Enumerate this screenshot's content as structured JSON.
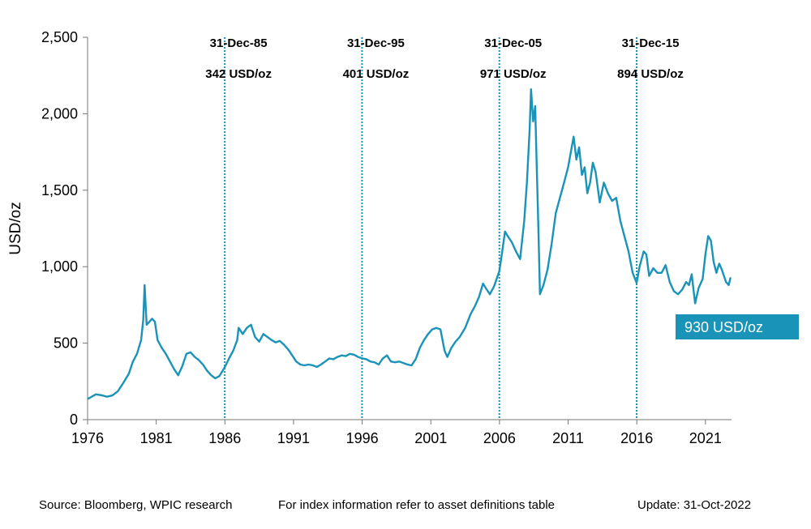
{
  "chart_data": {
    "type": "line",
    "title": "",
    "xlabel": "",
    "ylabel": "USD/oz",
    "xlim": [
      1976,
      2022.9
    ],
    "ylim": [
      0,
      2500
    ],
    "x_ticks": [
      "1976",
      "1981",
      "1986",
      "1991",
      "1996",
      "2001",
      "2006",
      "2011",
      "2016",
      "2021"
    ],
    "y_ticks": [
      "0",
      "500",
      "1,000",
      "1,500",
      "2,000",
      "2,500"
    ],
    "grid": false,
    "line_color": "#1a93b8",
    "series": [
      {
        "name": "",
        "points": [
          [
            1976.0,
            135
          ],
          [
            1976.3,
            150
          ],
          [
            1976.6,
            165
          ],
          [
            1977.0,
            160
          ],
          [
            1977.4,
            150
          ],
          [
            1977.8,
            158
          ],
          [
            1978.2,
            185
          ],
          [
            1978.6,
            240
          ],
          [
            1979.0,
            300
          ],
          [
            1979.3,
            380
          ],
          [
            1979.6,
            430
          ],
          [
            1979.9,
            520
          ],
          [
            1980.05,
            650
          ],
          [
            1980.15,
            880
          ],
          [
            1980.3,
            620
          ],
          [
            1980.5,
            640
          ],
          [
            1980.7,
            660
          ],
          [
            1980.9,
            640
          ],
          [
            1981.1,
            520
          ],
          [
            1981.4,
            470
          ],
          [
            1981.7,
            430
          ],
          [
            1982.0,
            380
          ],
          [
            1982.3,
            330
          ],
          [
            1982.6,
            290
          ],
          [
            1982.9,
            350
          ],
          [
            1983.2,
            430
          ],
          [
            1983.5,
            440
          ],
          [
            1983.8,
            410
          ],
          [
            1984.1,
            390
          ],
          [
            1984.4,
            360
          ],
          [
            1984.7,
            320
          ],
          [
            1985.0,
            290
          ],
          [
            1985.3,
            270
          ],
          [
            1985.6,
            285
          ],
          [
            1985.99,
            342
          ],
          [
            1986.3,
            400
          ],
          [
            1986.6,
            450
          ],
          [
            1986.9,
            520
          ],
          [
            1987.0,
            600
          ],
          [
            1987.3,
            560
          ],
          [
            1987.6,
            600
          ],
          [
            1987.9,
            620
          ],
          [
            1988.2,
            540
          ],
          [
            1988.5,
            510
          ],
          [
            1988.8,
            560
          ],
          [
            1989.1,
            540
          ],
          [
            1989.4,
            520
          ],
          [
            1989.7,
            505
          ],
          [
            1990.0,
            515
          ],
          [
            1990.3,
            490
          ],
          [
            1990.6,
            460
          ],
          [
            1990.9,
            420
          ],
          [
            1991.2,
            380
          ],
          [
            1991.5,
            360
          ],
          [
            1991.8,
            355
          ],
          [
            1992.1,
            360
          ],
          [
            1992.4,
            355
          ],
          [
            1992.7,
            345
          ],
          [
            1993.0,
            360
          ],
          [
            1993.3,
            380
          ],
          [
            1993.6,
            400
          ],
          [
            1993.9,
            395
          ],
          [
            1994.2,
            410
          ],
          [
            1994.5,
            420
          ],
          [
            1994.8,
            415
          ],
          [
            1995.1,
            430
          ],
          [
            1995.4,
            425
          ],
          [
            1995.7,
            410
          ],
          [
            1995.99,
            401
          ],
          [
            1996.3,
            395
          ],
          [
            1996.6,
            380
          ],
          [
            1996.9,
            375
          ],
          [
            1997.2,
            360
          ],
          [
            1997.5,
            400
          ],
          [
            1997.8,
            420
          ],
          [
            1998.1,
            380
          ],
          [
            1998.4,
            375
          ],
          [
            1998.7,
            380
          ],
          [
            1999.0,
            370
          ],
          [
            1999.3,
            360
          ],
          [
            1999.6,
            355
          ],
          [
            1999.9,
            395
          ],
          [
            2000.2,
            470
          ],
          [
            2000.5,
            520
          ],
          [
            2000.8,
            560
          ],
          [
            2001.1,
            590
          ],
          [
            2001.4,
            600
          ],
          [
            2001.7,
            590
          ],
          [
            2002.0,
            450
          ],
          [
            2002.2,
            410
          ],
          [
            2002.5,
            470
          ],
          [
            2002.8,
            510
          ],
          [
            2003.1,
            540
          ],
          [
            2003.5,
            600
          ],
          [
            2003.9,
            690
          ],
          [
            2004.2,
            740
          ],
          [
            2004.5,
            800
          ],
          [
            2004.8,
            890
          ],
          [
            2005.0,
            860
          ],
          [
            2005.3,
            820
          ],
          [
            2005.6,
            870
          ],
          [
            2005.99,
            971
          ],
          [
            2006.2,
            1100
          ],
          [
            2006.4,
            1230
          ],
          [
            2006.6,
            1200
          ],
          [
            2006.9,
            1160
          ],
          [
            2007.2,
            1100
          ],
          [
            2007.5,
            1050
          ],
          [
            2007.8,
            1300
          ],
          [
            2008.0,
            1550
          ],
          [
            2008.2,
            1900
          ],
          [
            2008.3,
            2160
          ],
          [
            2008.45,
            1950
          ],
          [
            2008.6,
            2050
          ],
          [
            2008.7,
            1700
          ],
          [
            2008.85,
            1200
          ],
          [
            2008.95,
            820
          ],
          [
            2009.2,
            880
          ],
          [
            2009.5,
            980
          ],
          [
            2009.8,
            1150
          ],
          [
            2010.1,
            1350
          ],
          [
            2010.4,
            1450
          ],
          [
            2010.7,
            1550
          ],
          [
            2011.0,
            1650
          ],
          [
            2011.2,
            1750
          ],
          [
            2011.4,
            1850
          ],
          [
            2011.6,
            1700
          ],
          [
            2011.8,
            1780
          ],
          [
            2012.0,
            1600
          ],
          [
            2012.2,
            1650
          ],
          [
            2012.4,
            1480
          ],
          [
            2012.6,
            1550
          ],
          [
            2012.8,
            1680
          ],
          [
            2013.0,
            1620
          ],
          [
            2013.3,
            1420
          ],
          [
            2013.6,
            1550
          ],
          [
            2013.9,
            1480
          ],
          [
            2014.2,
            1430
          ],
          [
            2014.5,
            1450
          ],
          [
            2014.8,
            1300
          ],
          [
            2015.1,
            1200
          ],
          [
            2015.4,
            1100
          ],
          [
            2015.7,
            960
          ],
          [
            2015.99,
            894
          ],
          [
            2016.2,
            1000
          ],
          [
            2016.5,
            1100
          ],
          [
            2016.7,
            1080
          ],
          [
            2016.9,
            940
          ],
          [
            2017.2,
            990
          ],
          [
            2017.5,
            960
          ],
          [
            2017.8,
            960
          ],
          [
            2018.1,
            1010
          ],
          [
            2018.4,
            900
          ],
          [
            2018.7,
            840
          ],
          [
            2019.0,
            820
          ],
          [
            2019.3,
            850
          ],
          [
            2019.6,
            900
          ],
          [
            2019.8,
            880
          ],
          [
            2020.0,
            950
          ],
          [
            2020.25,
            760
          ],
          [
            2020.5,
            860
          ],
          [
            2020.8,
            920
          ],
          [
            2021.0,
            1080
          ],
          [
            2021.2,
            1200
          ],
          [
            2021.4,
            1170
          ],
          [
            2021.6,
            1030
          ],
          [
            2021.8,
            960
          ],
          [
            2022.0,
            1020
          ],
          [
            2022.2,
            980
          ],
          [
            2022.5,
            900
          ],
          [
            2022.7,
            880
          ],
          [
            2022.83,
            930
          ]
        ]
      }
    ],
    "annotations": [
      {
        "x": 1985.99,
        "date": "31-Dec-85",
        "value": "342 USD/oz"
      },
      {
        "x": 1995.99,
        "date": "31-Dec-95",
        "value": "401 USD/oz"
      },
      {
        "x": 2005.99,
        "date": "31-Dec-05",
        "value": "971 USD/oz"
      },
      {
        "x": 2015.99,
        "date": "31-Dec-15",
        "value": "894 USD/oz"
      }
    ],
    "current_label": "930 USD/oz"
  },
  "footer": {
    "source": "Source: Bloomberg, WPIC research",
    "note": "For index information refer to asset definitions table",
    "update": "Update: 31-Oct-2022"
  }
}
